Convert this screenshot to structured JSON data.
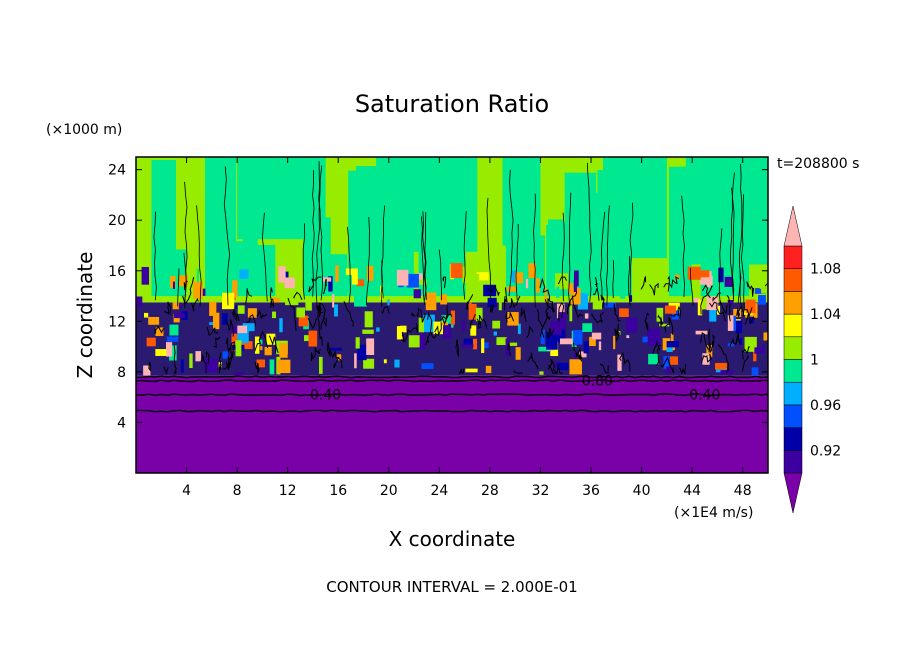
{
  "chart_data": {
    "type": "heatmap",
    "title": "Saturation Ratio",
    "xlabel": "X coordinate",
    "ylabel": "Z coordinate",
    "x_unit": "(×1E4 m/s)",
    "y_unit": "(×1000 m)",
    "time_label": "t=208800 s",
    "contour_interval_label": "CONTOUR INTERVAL = 2.000E-01",
    "xlim": [
      0,
      50
    ],
    "ylim": [
      0,
      25
    ],
    "x_ticks": [
      4,
      8,
      12,
      16,
      20,
      24,
      28,
      32,
      36,
      40,
      44,
      48
    ],
    "x_tick_labels": [
      "4",
      "8",
      "12",
      "16",
      "20",
      "24",
      "28",
      "32",
      "36",
      "40",
      "44",
      "48"
    ],
    "y_ticks": [
      4,
      8,
      12,
      16,
      20,
      24
    ],
    "y_tick_labels": [
      "4",
      "8",
      "12",
      "16",
      "20",
      "24"
    ],
    "contour_labels": [
      {
        "text": "0.40",
        "x": 15.0,
        "z": 6.2
      },
      {
        "text": "0.80",
        "x": 36.5,
        "z": 7.3
      },
      {
        "text": "0.40",
        "x": 45.0,
        "z": 6.2
      }
    ],
    "layers": [
      {
        "range": "z 0-4.9",
        "value_range": "below 0.92"
      },
      {
        "range": "z 7.7-11",
        "value_range": "0.92 to 1.10 mixed (cloud layer)"
      },
      {
        "range": "z 11-16",
        "value_range": "0.98 to 1.10 turbulent"
      },
      {
        "range": "z 16-25",
        "value_range": "0.98 to 1.02 vertical plumes"
      }
    ],
    "colorbar": {
      "colors": [
        "#7a00a8",
        "#3c00a0",
        "#0000a8",
        "#0050ff",
        "#00b0ff",
        "#00e890",
        "#98ec00",
        "#ffff00",
        "#ffa000",
        "#ff5a00",
        "#ff2020",
        "#ffb4b4"
      ],
      "tick_values": [
        0.92,
        0.96,
        1,
        1.04,
        1.08
      ],
      "tick_labels": [
        "0.92",
        "0.96",
        "1",
        "1.04",
        "1.08"
      ]
    }
  }
}
